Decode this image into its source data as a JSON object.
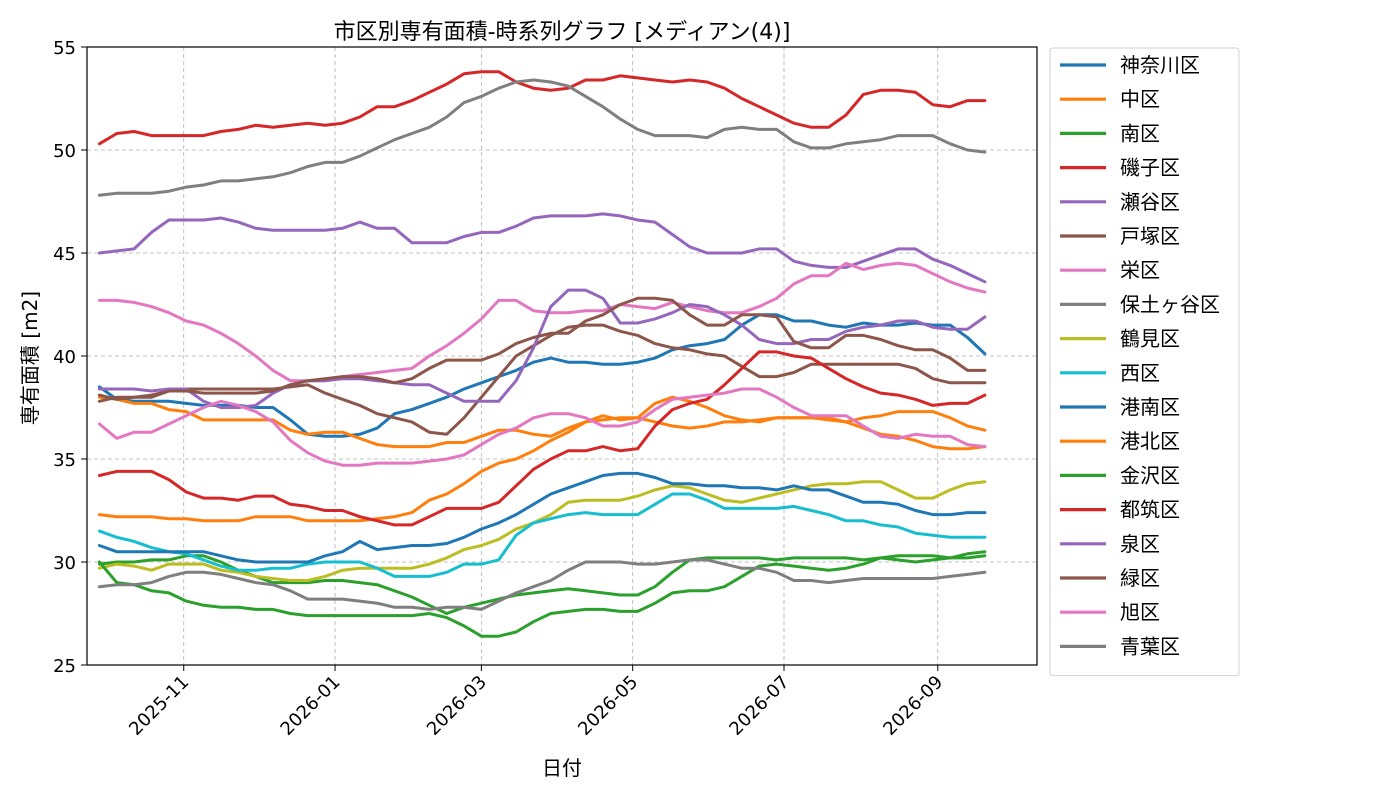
{
  "chart_data": {
    "type": "line",
    "title": "市区別専有面積-時系列グラフ [メディアン(4)]",
    "xlabel": "日付",
    "ylabel": "専有面積 [m2]",
    "ylim": [
      25,
      55
    ],
    "xlim": [
      "2025-09-23",
      "2026-10-11"
    ],
    "yticks": [
      25,
      30,
      35,
      40,
      45,
      50,
      55
    ],
    "xticks": [
      "2025-11",
      "2026-01",
      "2026-03",
      "2026-05",
      "2026-07",
      "2026-09"
    ],
    "grid": true,
    "legend_position": "outside-right",
    "x": [
      "2025-09-28",
      "2025-10-05",
      "2025-10-12",
      "2025-10-19",
      "2025-10-26",
      "2025-11-02",
      "2025-11-09",
      "2025-11-16",
      "2025-11-23",
      "2025-11-30",
      "2025-12-07",
      "2025-12-14",
      "2025-12-21",
      "2025-12-28",
      "2026-01-04",
      "2026-01-11",
      "2026-01-18",
      "2026-01-25",
      "2026-02-01",
      "2026-02-08",
      "2026-02-15",
      "2026-02-22",
      "2026-03-01",
      "2026-03-08",
      "2026-03-15",
      "2026-03-22",
      "2026-03-29",
      "2026-04-05",
      "2026-04-12",
      "2026-04-19",
      "2026-04-26",
      "2026-05-03",
      "2026-05-10",
      "2026-05-17",
      "2026-05-24",
      "2026-05-31",
      "2026-06-07",
      "2026-06-14",
      "2026-06-21",
      "2026-06-28",
      "2026-07-05",
      "2026-07-12",
      "2026-07-19",
      "2026-07-26",
      "2026-08-02",
      "2026-08-09",
      "2026-08-16",
      "2026-08-23",
      "2026-08-30",
      "2026-09-06",
      "2026-09-13",
      "2026-09-20"
    ],
    "series": [
      {
        "name": "神奈川区",
        "color": "#1f77b4",
        "values": [
          38.5,
          37.9,
          37.8,
          37.8,
          37.8,
          37.7,
          37.6,
          37.6,
          37.6,
          37.5,
          37.5,
          36.9,
          36.2,
          36.1,
          36.1,
          36.2,
          36.5,
          37.2,
          37.4,
          37.7,
          38.0,
          38.4,
          38.7,
          39.0,
          39.3,
          39.7,
          39.9,
          39.7,
          39.7,
          39.6,
          39.6,
          39.7,
          39.9,
          40.3,
          40.5,
          40.6,
          40.8,
          41.5,
          42.0,
          42.0,
          41.7,
          41.7,
          41.5,
          41.4,
          41.6,
          41.5,
          41.5,
          41.6,
          41.5,
          41.5,
          40.9,
          40.1
        ]
      },
      {
        "name": "中区",
        "color": "#ff7f0e",
        "values": [
          38.0,
          37.9,
          37.7,
          37.7,
          37.4,
          37.3,
          36.9,
          36.9,
          36.9,
          36.9,
          36.9,
          36.4,
          36.2,
          36.3,
          36.3,
          36.0,
          35.7,
          35.6,
          35.6,
          35.6,
          35.8,
          35.8,
          36.1,
          36.4,
          36.4,
          36.2,
          36.1,
          36.5,
          36.8,
          36.9,
          37.0,
          37.0,
          36.8,
          36.6,
          36.5,
          36.6,
          36.8,
          36.8,
          36.9,
          37.0,
          37.0,
          37.0,
          36.9,
          36.8,
          36.5,
          36.2,
          36.1,
          35.9,
          35.6,
          35.5,
          35.5,
          35.6
        ]
      },
      {
        "name": "南区",
        "color": "#2ca02c",
        "values": [
          29.9,
          30.0,
          30.0,
          30.1,
          30.1,
          30.3,
          30.3,
          30.0,
          29.6,
          29.3,
          29.0,
          29.0,
          29.0,
          29.1,
          29.1,
          29.0,
          28.9,
          28.6,
          28.3,
          27.9,
          27.5,
          27.8,
          28.0,
          28.2,
          28.4,
          28.5,
          28.6,
          28.7,
          28.6,
          28.5,
          28.4,
          28.4,
          28.8,
          29.5,
          30.1,
          30.2,
          30.2,
          30.2,
          30.2,
          30.1,
          30.2,
          30.2,
          30.2,
          30.2,
          30.1,
          30.2,
          30.3,
          30.3,
          30.3,
          30.2,
          30.2,
          30.3
        ]
      },
      {
        "name": "磯子区",
        "color": "#d62728",
        "values": [
          50.3,
          50.8,
          50.9,
          50.7,
          50.7,
          50.7,
          50.7,
          50.9,
          51.0,
          51.2,
          51.1,
          51.2,
          51.3,
          51.2,
          51.3,
          51.6,
          52.1,
          52.1,
          52.4,
          52.8,
          53.2,
          53.7,
          53.8,
          53.8,
          53.3,
          53.0,
          52.9,
          53.0,
          53.4,
          53.4,
          53.6,
          53.5,
          53.4,
          53.3,
          53.4,
          53.3,
          53.0,
          52.5,
          52.1,
          51.7,
          51.3,
          51.1,
          51.1,
          51.7,
          52.7,
          52.9,
          52.9,
          52.8,
          52.2,
          52.1,
          52.4,
          52.4
        ]
      },
      {
        "name": "瀬谷区",
        "color": "#9467bd",
        "values": [
          45.0,
          45.1,
          45.2,
          46.0,
          46.6,
          46.6,
          46.6,
          46.7,
          46.5,
          46.2,
          46.1,
          46.1,
          46.1,
          46.1,
          46.2,
          46.5,
          46.2,
          46.2,
          45.5,
          45.5,
          45.5,
          45.8,
          46.0,
          46.0,
          46.3,
          46.7,
          46.8,
          46.8,
          46.8,
          46.9,
          46.8,
          46.6,
          46.5,
          45.9,
          45.3,
          45.0,
          45.0,
          45.0,
          45.2,
          45.2,
          44.6,
          44.4,
          44.3,
          44.3,
          44.6,
          44.9,
          45.2,
          45.2,
          44.7,
          44.4,
          44.0,
          43.6
        ]
      },
      {
        "name": "戸塚区",
        "color": "#8c564b",
        "values": [
          37.8,
          38.0,
          38.0,
          38.1,
          38.3,
          38.4,
          38.4,
          38.4,
          38.4,
          38.4,
          38.4,
          38.5,
          38.6,
          38.2,
          37.9,
          37.6,
          37.2,
          37.0,
          36.8,
          36.3,
          36.2,
          37.0,
          38.0,
          39.0,
          40.0,
          40.5,
          41.0,
          41.4,
          41.5,
          41.5,
          41.2,
          41.0,
          40.6,
          40.4,
          40.3,
          40.1,
          40.0,
          39.5,
          39.0,
          39.0,
          39.2,
          39.6,
          39.6,
          39.6,
          39.6,
          39.6,
          39.6,
          39.4,
          38.9,
          38.7,
          38.7,
          38.7
        ]
      },
      {
        "name": "栄区",
        "color": "#e377c2",
        "values": [
          42.7,
          42.7,
          42.6,
          42.4,
          42.1,
          41.7,
          41.5,
          41.1,
          40.6,
          40.0,
          39.3,
          38.8,
          38.8,
          38.8,
          39.0,
          39.1,
          39.2,
          39.3,
          39.4,
          40.0,
          40.5,
          41.1,
          41.8,
          42.7,
          42.7,
          42.2,
          42.1,
          42.1,
          42.2,
          42.2,
          42.5,
          42.4,
          42.3,
          42.6,
          42.4,
          42.2,
          42.1,
          42.1,
          42.4,
          42.8,
          43.5,
          43.9,
          43.9,
          44.5,
          44.2,
          44.4,
          44.5,
          44.4,
          44.0,
          43.6,
          43.3,
          43.1
        ]
      },
      {
        "name": "保土ヶ谷区",
        "color": "#7f7f7f",
        "values": [
          47.8,
          47.9,
          47.9,
          47.9,
          48.0,
          48.2,
          48.3,
          48.5,
          48.5,
          48.6,
          48.7,
          48.9,
          49.2,
          49.4,
          49.4,
          49.7,
          50.1,
          50.5,
          50.8,
          51.1,
          51.6,
          52.3,
          52.6,
          53.0,
          53.3,
          53.4,
          53.3,
          53.1,
          52.6,
          52.1,
          51.5,
          51.0,
          50.7,
          50.7,
          50.7,
          50.6,
          51.0,
          51.1,
          51.0,
          51.0,
          50.4,
          50.1,
          50.1,
          50.3,
          50.4,
          50.5,
          50.7,
          50.7,
          50.7,
          50.3,
          50.0,
          49.9
        ]
      },
      {
        "name": "鶴見区",
        "color": "#bcbd22",
        "values": [
          29.7,
          29.9,
          29.8,
          29.6,
          29.9,
          29.9,
          29.9,
          29.6,
          29.5,
          29.3,
          29.2,
          29.1,
          29.1,
          29.3,
          29.6,
          29.7,
          29.7,
          29.7,
          29.7,
          29.9,
          30.2,
          30.6,
          30.8,
          31.1,
          31.6,
          31.9,
          32.3,
          32.9,
          33.0,
          33.0,
          33.0,
          33.2,
          33.5,
          33.7,
          33.6,
          33.3,
          33.0,
          32.9,
          33.1,
          33.3,
          33.5,
          33.7,
          33.8,
          33.8,
          33.9,
          33.9,
          33.5,
          33.1,
          33.1,
          33.5,
          33.8,
          33.9
        ]
      },
      {
        "name": "西区",
        "color": "#17becf",
        "values": [
          31.5,
          31.2,
          31.0,
          30.7,
          30.5,
          30.4,
          30.1,
          29.8,
          29.6,
          29.6,
          29.7,
          29.7,
          29.9,
          30.0,
          30.0,
          30.0,
          29.7,
          29.3,
          29.3,
          29.3,
          29.5,
          29.9,
          29.9,
          30.1,
          31.3,
          31.9,
          32.1,
          32.3,
          32.4,
          32.3,
          32.3,
          32.3,
          32.8,
          33.3,
          33.3,
          33.0,
          32.6,
          32.6,
          32.6,
          32.6,
          32.7,
          32.5,
          32.3,
          32.0,
          32.0,
          31.8,
          31.7,
          31.4,
          31.3,
          31.2,
          31.2,
          31.2
        ]
      },
      {
        "name": "港南区",
        "color": "#1f77b4",
        "values": [
          30.8,
          30.5,
          30.5,
          30.5,
          30.5,
          30.5,
          30.5,
          30.3,
          30.1,
          30.0,
          30.0,
          30.0,
          30.0,
          30.3,
          30.5,
          31.0,
          30.6,
          30.7,
          30.8,
          30.8,
          30.9,
          31.2,
          31.6,
          31.9,
          32.3,
          32.8,
          33.3,
          33.6,
          33.9,
          34.2,
          34.3,
          34.3,
          34.1,
          33.8,
          33.8,
          33.7,
          33.7,
          33.6,
          33.6,
          33.5,
          33.7,
          33.5,
          33.5,
          33.2,
          32.9,
          32.9,
          32.8,
          32.5,
          32.3,
          32.3,
          32.4,
          32.4
        ]
      },
      {
        "name": "港北区",
        "color": "#ff7f0e",
        "values": [
          32.3,
          32.2,
          32.2,
          32.2,
          32.1,
          32.1,
          32.0,
          32.0,
          32.0,
          32.2,
          32.2,
          32.2,
          32.0,
          32.0,
          32.0,
          32.0,
          32.1,
          32.2,
          32.4,
          33.0,
          33.3,
          33.8,
          34.4,
          34.8,
          35.0,
          35.4,
          35.9,
          36.3,
          36.8,
          37.1,
          36.9,
          37.0,
          37.7,
          38.0,
          37.8,
          37.5,
          37.1,
          36.9,
          36.8,
          37.0,
          37.0,
          37.0,
          37.0,
          36.8,
          37.0,
          37.1,
          37.3,
          37.3,
          37.3,
          37.0,
          36.6,
          36.4
        ]
      },
      {
        "name": "金沢区",
        "color": "#2ca02c",
        "values": [
          30.0,
          29.0,
          28.9,
          28.6,
          28.5,
          28.1,
          27.9,
          27.8,
          27.8,
          27.7,
          27.7,
          27.5,
          27.4,
          27.4,
          27.4,
          27.4,
          27.4,
          27.4,
          27.4,
          27.5,
          27.3,
          26.9,
          26.4,
          26.4,
          26.6,
          27.1,
          27.5,
          27.6,
          27.7,
          27.7,
          27.6,
          27.6,
          28.0,
          28.5,
          28.6,
          28.6,
          28.8,
          29.3,
          29.8,
          29.9,
          29.8,
          29.7,
          29.6,
          29.7,
          29.9,
          30.2,
          30.1,
          30.0,
          30.1,
          30.2,
          30.4,
          30.5
        ]
      },
      {
        "name": "都筑区",
        "color": "#d62728",
        "values": [
          34.2,
          34.4,
          34.4,
          34.4,
          34.0,
          33.4,
          33.1,
          33.1,
          33.0,
          33.2,
          33.2,
          32.8,
          32.7,
          32.5,
          32.5,
          32.2,
          32.0,
          31.8,
          31.8,
          32.2,
          32.6,
          32.6,
          32.6,
          32.9,
          33.7,
          34.5,
          35.0,
          35.4,
          35.4,
          35.6,
          35.4,
          35.5,
          36.6,
          37.4,
          37.7,
          37.9,
          38.6,
          39.4,
          40.2,
          40.2,
          40.0,
          39.9,
          39.4,
          38.9,
          38.5,
          38.2,
          38.1,
          37.9,
          37.6,
          37.7,
          37.7,
          38.1
        ]
      },
      {
        "name": "泉区",
        "color": "#9467bd",
        "values": [
          38.4,
          38.4,
          38.4,
          38.3,
          38.4,
          38.4,
          37.8,
          37.5,
          37.5,
          37.6,
          38.2,
          38.6,
          38.8,
          38.8,
          38.9,
          38.9,
          38.8,
          38.7,
          38.6,
          38.6,
          38.2,
          37.8,
          37.8,
          37.8,
          38.8,
          40.4,
          42.4,
          43.2,
          43.2,
          42.8,
          41.6,
          41.6,
          41.8,
          42.1,
          42.5,
          42.4,
          42.0,
          41.5,
          40.8,
          40.6,
          40.6,
          40.8,
          40.8,
          41.2,
          41.4,
          41.5,
          41.7,
          41.7,
          41.4,
          41.3,
          41.3,
          41.9
        ]
      },
      {
        "name": "緑区",
        "color": "#8c564b",
        "values": [
          38.1,
          37.9,
          38.0,
          38.0,
          38.3,
          38.3,
          38.2,
          38.2,
          38.2,
          38.2,
          38.3,
          38.6,
          38.8,
          38.9,
          39.0,
          39.0,
          38.9,
          38.7,
          38.9,
          39.4,
          39.8,
          39.8,
          39.8,
          40.1,
          40.6,
          40.9,
          41.1,
          41.1,
          41.7,
          42.0,
          42.5,
          42.8,
          42.8,
          42.7,
          42.0,
          41.5,
          41.5,
          42.0,
          42.0,
          41.9,
          40.7,
          40.4,
          40.4,
          41.0,
          41.0,
          40.8,
          40.5,
          40.3,
          40.3,
          39.9,
          39.3,
          39.3
        ]
      },
      {
        "name": "旭区",
        "color": "#e377c2",
        "values": [
          36.7,
          36.0,
          36.3,
          36.3,
          36.7,
          37.1,
          37.5,
          37.8,
          37.6,
          37.3,
          36.8,
          35.9,
          35.3,
          34.9,
          34.7,
          34.7,
          34.8,
          34.8,
          34.8,
          34.9,
          35.0,
          35.2,
          35.7,
          36.2,
          36.5,
          37.0,
          37.2,
          37.2,
          37.0,
          36.6,
          36.6,
          36.8,
          37.4,
          37.9,
          38.0,
          38.1,
          38.2,
          38.4,
          38.4,
          38.0,
          37.5,
          37.1,
          37.1,
          37.1,
          36.6,
          36.1,
          36.0,
          36.2,
          36.1,
          36.1,
          35.7,
          35.6
        ]
      },
      {
        "name": "青葉区",
        "color": "#7f7f7f",
        "values": [
          28.8,
          28.9,
          28.9,
          29.0,
          29.3,
          29.5,
          29.5,
          29.4,
          29.2,
          29.0,
          28.9,
          28.6,
          28.2,
          28.2,
          28.2,
          28.1,
          28.0,
          27.8,
          27.8,
          27.7,
          27.8,
          27.8,
          27.7,
          28.1,
          28.5,
          28.8,
          29.1,
          29.6,
          30.0,
          30.0,
          30.0,
          29.9,
          29.9,
          30.0,
          30.1,
          30.1,
          29.9,
          29.7,
          29.7,
          29.5,
          29.1,
          29.1,
          29.0,
          29.1,
          29.2,
          29.2,
          29.2,
          29.2,
          29.2,
          29.3,
          29.4,
          29.5
        ]
      }
    ]
  }
}
